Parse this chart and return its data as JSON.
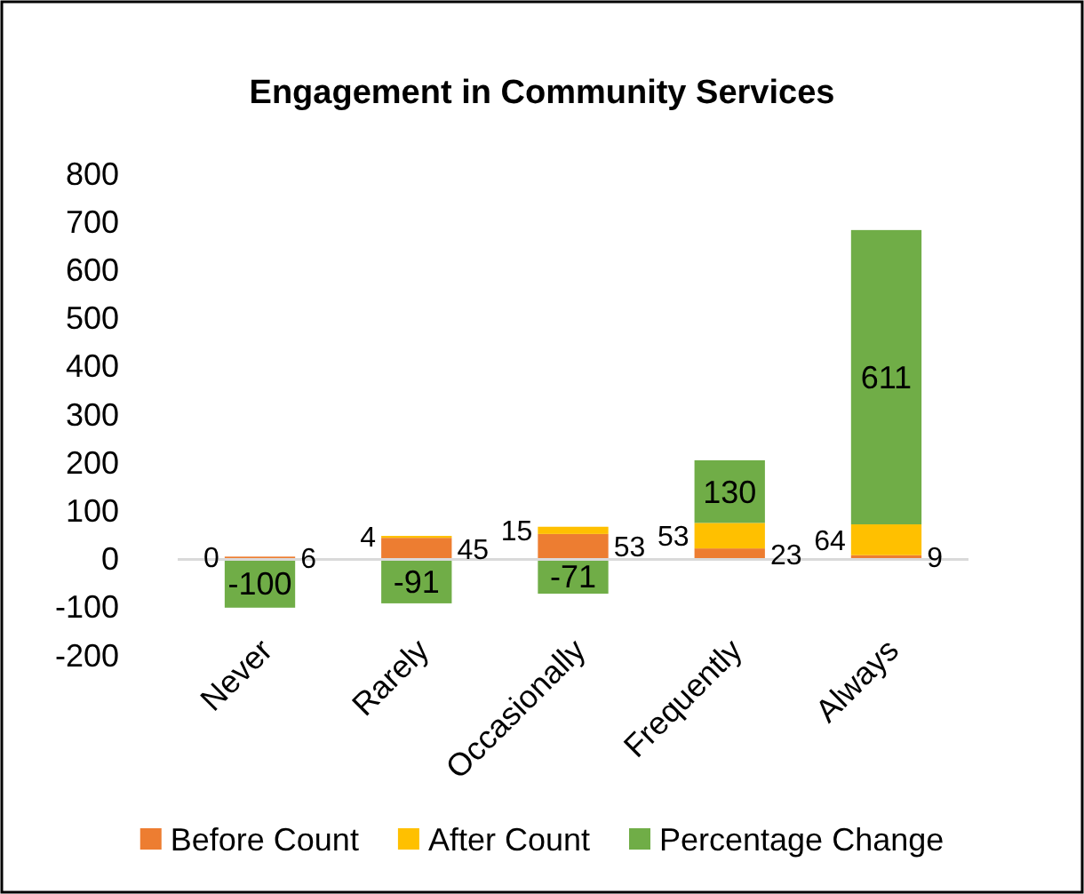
{
  "chart_data": {
    "type": "bar",
    "title": "Engagement in Community Services",
    "categories": [
      "Never",
      "Rarely",
      "Occasionally",
      "Frequently",
      "Always"
    ],
    "stacked": true,
    "data_labels": true,
    "legend": "bottom",
    "grid": false,
    "ylim": [
      -200,
      800
    ],
    "yticks": [
      -200,
      -100,
      0,
      100,
      200,
      300,
      400,
      500,
      600,
      700,
      800
    ],
    "series": [
      {
        "name": "Before Count",
        "color": "#ed7d31",
        "values": [
          6,
          45,
          53,
          23,
          9
        ]
      },
      {
        "name": "After Count",
        "color": "#ffc000",
        "values": [
          0,
          4,
          15,
          53,
          64
        ]
      },
      {
        "name": "Percentage Change",
        "color": "#70ad47",
        "values": [
          -100,
          -91,
          -71,
          130,
          611
        ]
      }
    ]
  }
}
